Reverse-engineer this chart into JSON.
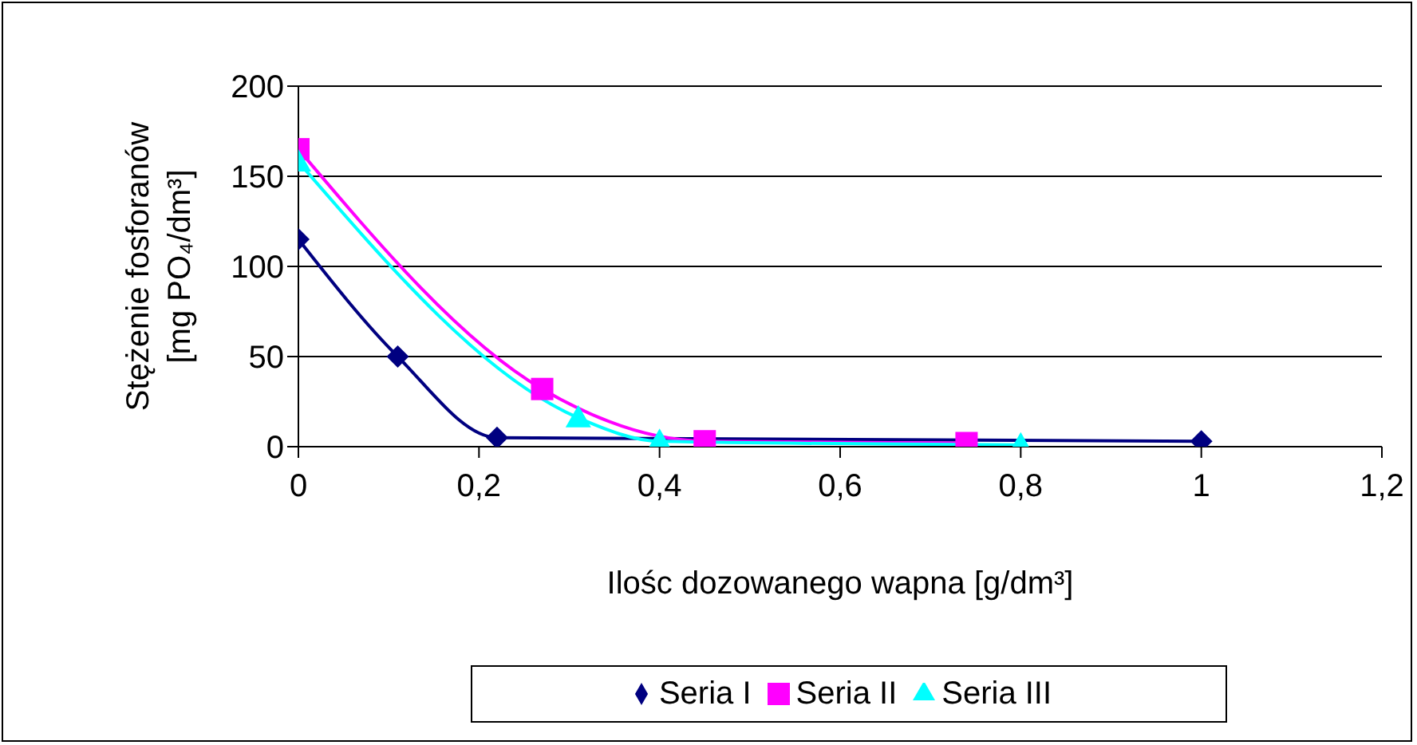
{
  "chart_data": {
    "type": "line",
    "ylabel": "Stężenie fosforanów\n[mg PO₄/dm³]",
    "xlabel": "Ilośc dozowanego wapna [g/dm³]",
    "xlim": [
      0,
      1.2
    ],
    "xticks": [
      0,
      {
        "value": 0.2,
        "label": "0,2"
      },
      {
        "value": 0.4,
        "label": "0,4"
      },
      {
        "value": 0.6,
        "label": "0,6"
      },
      {
        "value": 0.8,
        "label": "0,8"
      },
      1,
      {
        "value": 1.2,
        "label": "1,2"
      }
    ],
    "ylim": [
      0,
      200
    ],
    "yticks": [
      0,
      50,
      100,
      150,
      200
    ],
    "grid": "y",
    "legend": "bottom",
    "series": [
      {
        "name": "Seria I",
        "color": "#000080",
        "marker": "diamond",
        "x": [
          0,
          0.11,
          0.22,
          1
        ],
        "values": [
          115,
          50,
          5,
          3
        ]
      },
      {
        "name": "Seria II",
        "color": "#ff00ff",
        "marker": "square",
        "x": [
          0,
          0.27,
          0.45,
          0.74
        ],
        "values": [
          165,
          32,
          3,
          2
        ]
      },
      {
        "name": "Seria III",
        "color": "#00ffff",
        "marker": "triangle",
        "x": [
          0,
          0.31,
          0.4,
          0.8
        ],
        "values": [
          158,
          16,
          3,
          1
        ]
      }
    ]
  }
}
